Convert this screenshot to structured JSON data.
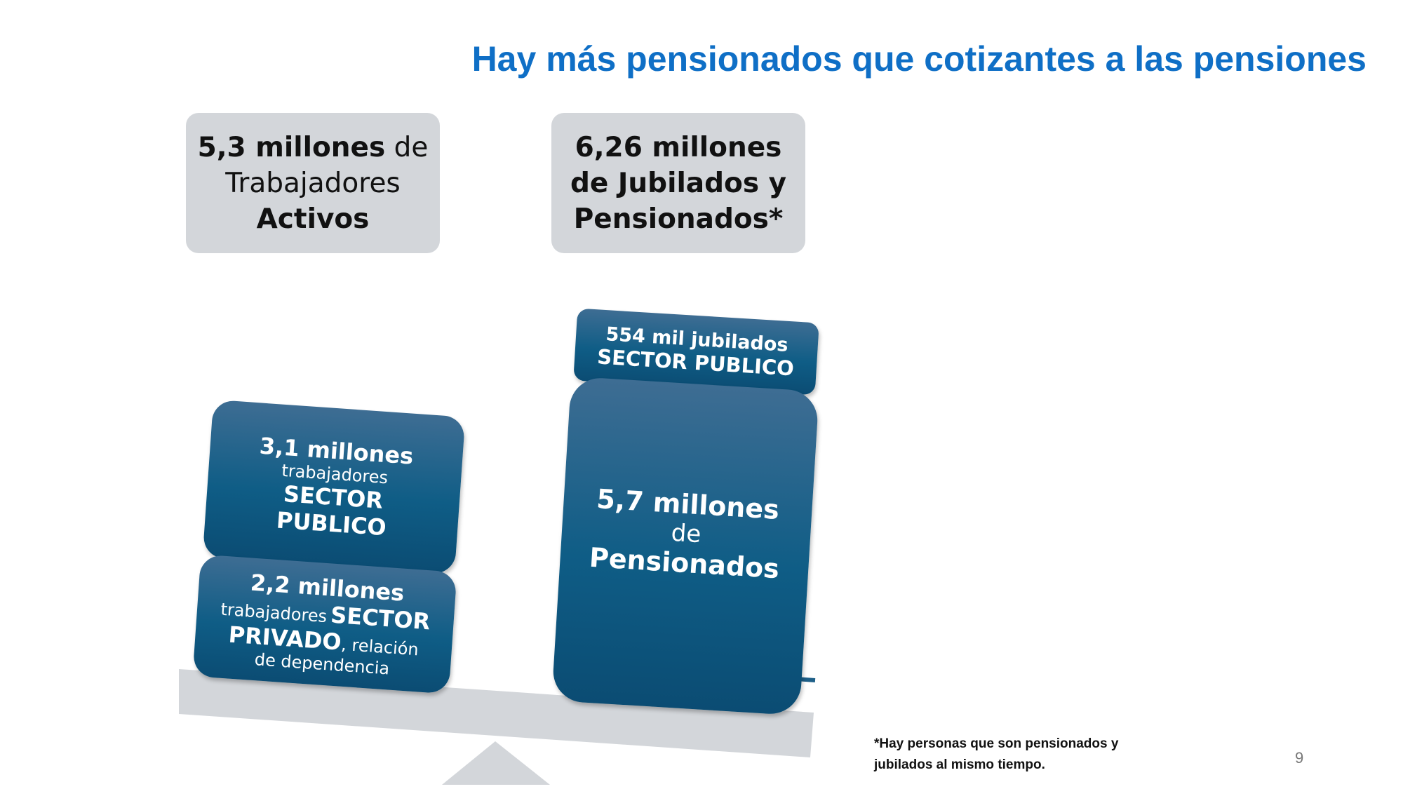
{
  "title": "Hay más pensionados que cotizantes a las pensiones",
  "workers_header": {
    "amount": "5,3 millones",
    "connector": "de",
    "line2": "Trabajadores",
    "line3": "Activos"
  },
  "retirees_header": {
    "line1": "6,26 millones",
    "line2": "de Jubilados y",
    "line3": "Pensionados*"
  },
  "public_workers": {
    "amount": "3,1 millones",
    "label": "trabajadores",
    "sector": "SECTOR PUBLICO"
  },
  "private_workers": {
    "amount": "2,2 millones",
    "label": "trabajadores",
    "sector_1": "SECTOR",
    "sector_2": "PRIVADO",
    "detail": ", relación de dependencia"
  },
  "public_retirees": {
    "amount": "554 mil jubilados",
    "sector": "SECTOR PUBLICO"
  },
  "pensioners": {
    "amount": "5,7 millones",
    "connector": "de",
    "label": "Pensionados"
  },
  "footnote": "*Hay personas que son pensionados y jubilados al mismo tiempo.",
  "page_number": "9"
}
